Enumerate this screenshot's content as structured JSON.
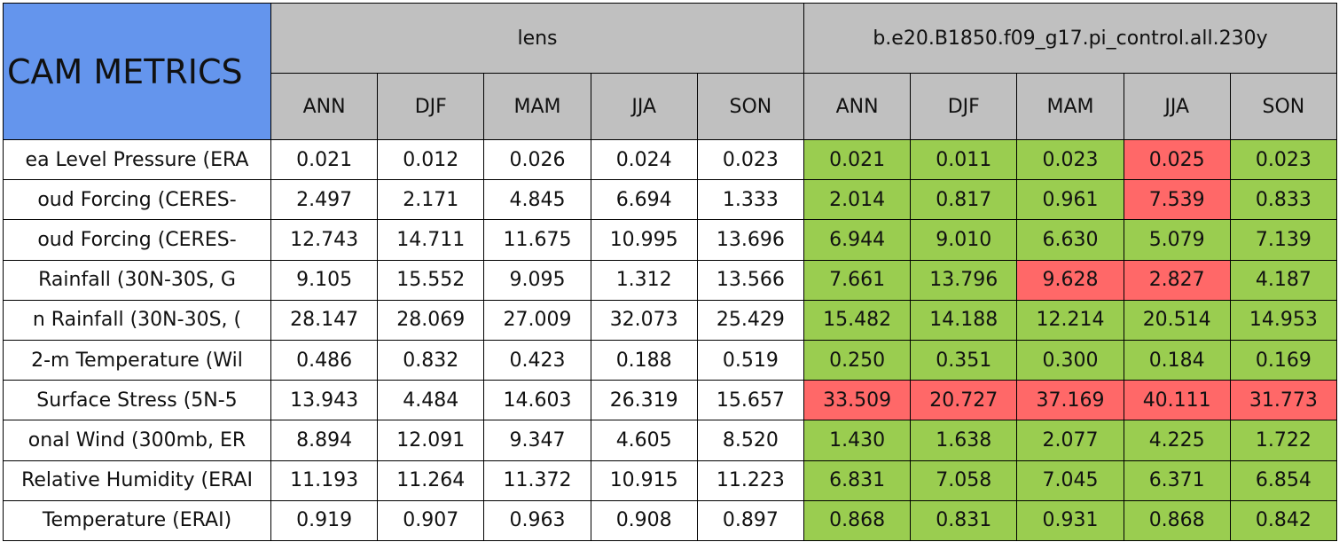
{
  "table": {
    "title": "CAM METRICS",
    "groups": [
      {
        "name": "lens",
        "columns": [
          "ANN",
          "DJF",
          "MAM",
          "JJA",
          "SON"
        ]
      },
      {
        "name": "b.e20.B1850.f09_g17.pi_control.all.230y",
        "columns": [
          "ANN",
          "DJF",
          "MAM",
          "JJA",
          "SON"
        ]
      }
    ],
    "rows": [
      {
        "label": "ea Level Pressure (ERA",
        "values": [
          "0.021",
          "0.012",
          "0.026",
          "0.024",
          "0.023",
          "0.021",
          "0.011",
          "0.023",
          "0.025",
          "0.023"
        ],
        "colors": [
          "#ffffff",
          "#ffffff",
          "#ffffff",
          "#ffffff",
          "#ffffff",
          "#9acd50",
          "#9acd50",
          "#9acd50",
          "#ff6868",
          "#9acd50"
        ]
      },
      {
        "label": "oud Forcing (CERES-",
        "values": [
          "2.497",
          "2.171",
          "4.845",
          "6.694",
          "1.333",
          "2.014",
          "0.817",
          "0.961",
          "7.539",
          "0.833"
        ],
        "colors": [
          "#ffffff",
          "#ffffff",
          "#ffffff",
          "#ffffff",
          "#ffffff",
          "#9acd50",
          "#9acd50",
          "#9acd50",
          "#ff6868",
          "#9acd50"
        ]
      },
      {
        "label": "oud Forcing (CERES-",
        "values": [
          "12.743",
          "14.711",
          "11.675",
          "10.995",
          "13.696",
          "6.944",
          "9.010",
          "6.630",
          "5.079",
          "7.139"
        ],
        "colors": [
          "#ffffff",
          "#ffffff",
          "#ffffff",
          "#ffffff",
          "#ffffff",
          "#9acd50",
          "#9acd50",
          "#9acd50",
          "#9acd50",
          "#9acd50"
        ]
      },
      {
        "label": "Rainfall (30N-30S, G",
        "values": [
          "9.105",
          "15.552",
          "9.095",
          "1.312",
          "13.566",
          "7.661",
          "13.796",
          "9.628",
          "2.827",
          "4.187"
        ],
        "colors": [
          "#ffffff",
          "#ffffff",
          "#ffffff",
          "#ffffff",
          "#ffffff",
          "#9acd50",
          "#9acd50",
          "#ff6868",
          "#ff6868",
          "#9acd50"
        ]
      },
      {
        "label": "n Rainfall (30N-30S, (",
        "values": [
          "28.147",
          "28.069",
          "27.009",
          "32.073",
          "25.429",
          "15.482",
          "14.188",
          "12.214",
          "20.514",
          "14.953"
        ],
        "colors": [
          "#ffffff",
          "#ffffff",
          "#ffffff",
          "#ffffff",
          "#ffffff",
          "#9acd50",
          "#9acd50",
          "#9acd50",
          "#9acd50",
          "#9acd50"
        ]
      },
      {
        "label": "2-m Temperature (Wil",
        "values": [
          "0.486",
          "0.832",
          "0.423",
          "0.188",
          "0.519",
          "0.250",
          "0.351",
          "0.300",
          "0.184",
          "0.169"
        ],
        "colors": [
          "#ffffff",
          "#ffffff",
          "#ffffff",
          "#ffffff",
          "#ffffff",
          "#9acd50",
          "#9acd50",
          "#9acd50",
          "#9acd50",
          "#9acd50"
        ]
      },
      {
        "label": "Surface Stress (5N-5",
        "values": [
          "13.943",
          "4.484",
          "14.603",
          "26.319",
          "15.657",
          "33.509",
          "20.727",
          "37.169",
          "40.111",
          "31.773"
        ],
        "colors": [
          "#ffffff",
          "#ffffff",
          "#ffffff",
          "#ffffff",
          "#ffffff",
          "#ff6868",
          "#ff6868",
          "#ff6868",
          "#ff6868",
          "#ff6868"
        ]
      },
      {
        "label": "onal Wind (300mb, ER",
        "values": [
          "8.894",
          "12.091",
          "9.347",
          "4.605",
          "8.520",
          "1.430",
          "1.638",
          "2.077",
          "4.225",
          "1.722"
        ],
        "colors": [
          "#ffffff",
          "#ffffff",
          "#ffffff",
          "#ffffff",
          "#ffffff",
          "#9acd50",
          "#9acd50",
          "#9acd50",
          "#9acd50",
          "#9acd50"
        ]
      },
      {
        "label": "Relative Humidity (ERAI",
        "values": [
          "11.193",
          "11.264",
          "11.372",
          "10.915",
          "11.223",
          "6.831",
          "7.058",
          "7.045",
          "6.371",
          "6.854"
        ],
        "colors": [
          "#ffffff",
          "#ffffff",
          "#ffffff",
          "#ffffff",
          "#ffffff",
          "#9acd50",
          "#9acd50",
          "#9acd50",
          "#9acd50",
          "#9acd50"
        ]
      },
      {
        "label": "Temperature (ERAI)",
        "values": [
          "0.919",
          "0.907",
          "0.963",
          "0.908",
          "0.897",
          "0.868",
          "0.831",
          "0.931",
          "0.868",
          "0.842"
        ],
        "colors": [
          "#ffffff",
          "#ffffff",
          "#ffffff",
          "#ffffff",
          "#ffffff",
          "#9acd50",
          "#9acd50",
          "#9acd50",
          "#9acd50",
          "#9acd50"
        ]
      }
    ]
  }
}
